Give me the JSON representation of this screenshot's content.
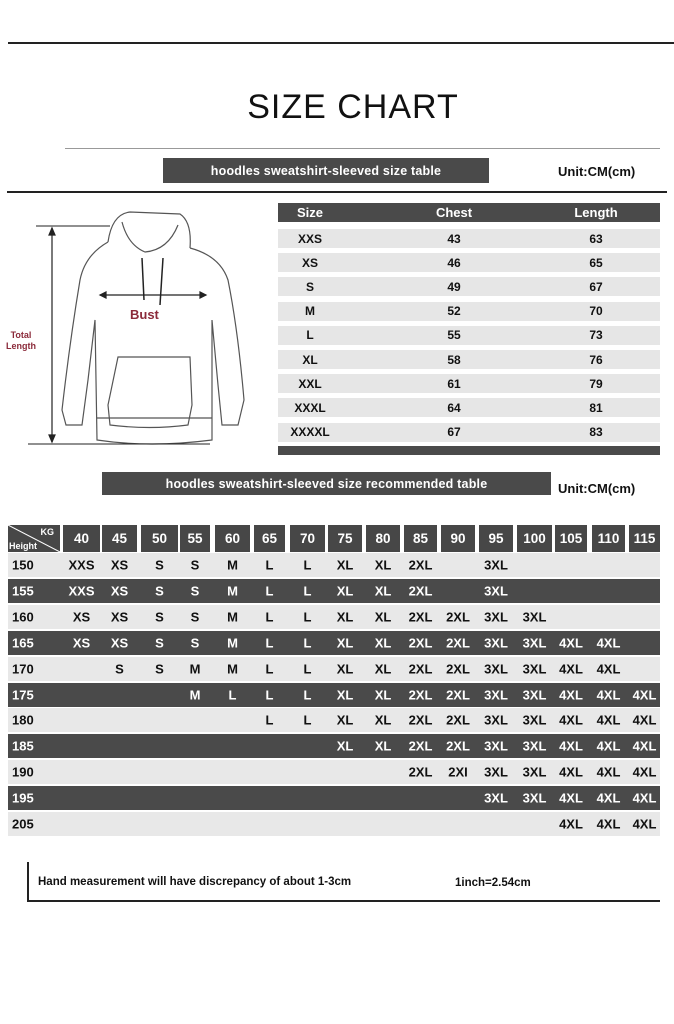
{
  "title": "SIZE CHART",
  "size_table": {
    "banner": "hoodles sweatshirt-sleeved size  table",
    "unit": "Unit:CM(cm)",
    "headers": [
      "Size",
      "Chest",
      "Length"
    ],
    "rows": [
      [
        "XXS",
        "43",
        "63"
      ],
      [
        "XS",
        "46",
        "65"
      ],
      [
        "S",
        "49",
        "67"
      ],
      [
        "M",
        "52",
        "70"
      ],
      [
        "L",
        "55",
        "73"
      ],
      [
        "XL",
        "58",
        "76"
      ],
      [
        "XXL",
        "61",
        "79"
      ],
      [
        "XXXL",
        "64",
        "81"
      ],
      [
        "XXXXL",
        "67",
        "83"
      ]
    ]
  },
  "diagram": {
    "bust_label": "Bust",
    "total_length_label": "Total\nLength",
    "bust_color": "#8b2a3a"
  },
  "recommend_table": {
    "banner": "hoodles sweatshirt-sleeved size recommended table",
    "unit": "Unit:CM(cm)",
    "corner_kg": "KG",
    "corner_height": "Height",
    "weights": [
      "40",
      "45",
      "50",
      "55",
      "60",
      "65",
      "70",
      "75",
      "80",
      "85",
      "90",
      "95",
      "100",
      "105",
      "110",
      "115"
    ],
    "rows": [
      {
        "height": "150",
        "sizes": [
          "XXS",
          "XS",
          "S",
          "S",
          "M",
          "L",
          "L",
          "XL",
          "XL",
          "2XL",
          "",
          "3XL",
          "",
          "",
          "",
          ""
        ]
      },
      {
        "height": "155",
        "sizes": [
          "XXS",
          "XS",
          "S",
          "S",
          "M",
          "L",
          "L",
          "XL",
          "XL",
          "2XL",
          "",
          "3XL",
          "",
          "",
          "",
          ""
        ]
      },
      {
        "height": "160",
        "sizes": [
          "XS",
          "XS",
          "S",
          "S",
          "M",
          "L",
          "L",
          "XL",
          "XL",
          "2XL",
          "2XL",
          "3XL",
          "3XL",
          "",
          "",
          ""
        ]
      },
      {
        "height": "165",
        "sizes": [
          "XS",
          "XS",
          "S",
          "S",
          "M",
          "L",
          "L",
          "XL",
          "XL",
          "2XL",
          "2XL",
          "3XL",
          "3XL",
          "4XL",
          "4XL",
          ""
        ]
      },
      {
        "height": "170",
        "sizes": [
          "",
          "S",
          "S",
          "M",
          "M",
          "L",
          "L",
          "XL",
          "XL",
          "2XL",
          "2XL",
          "3XL",
          "3XL",
          "4XL",
          "4XL",
          ""
        ]
      },
      {
        "height": "175",
        "sizes": [
          "",
          "",
          "",
          "M",
          "L",
          "L",
          "L",
          "XL",
          "XL",
          "2XL",
          "2XL",
          "3XL",
          "3XL",
          "4XL",
          "4XL",
          "4XL"
        ]
      },
      {
        "height": "180",
        "sizes": [
          "",
          "",
          "",
          "",
          "",
          "L",
          "L",
          "XL",
          "XL",
          "2XL",
          "2XL",
          "3XL",
          "3XL",
          "4XL",
          "4XL",
          "4XL"
        ]
      },
      {
        "height": "185",
        "sizes": [
          "",
          "",
          "",
          "",
          "",
          "",
          "",
          "XL",
          "XL",
          "2XL",
          "2XL",
          "3XL",
          "3XL",
          "4XL",
          "4XL",
          "4XL"
        ]
      },
      {
        "height": "190",
        "sizes": [
          "",
          "",
          "",
          "",
          "",
          "",
          "",
          "",
          "",
          "2XL",
          "2XI",
          "3XL",
          "3XL",
          "4XL",
          "4XL",
          "4XL"
        ]
      },
      {
        "height": "195",
        "sizes": [
          "",
          "",
          "",
          "",
          "",
          "",
          "",
          "",
          "",
          "",
          "",
          "3XL",
          "3XL",
          "4XL",
          "4XL",
          "4XL"
        ]
      },
      {
        "height": "205",
        "sizes": [
          "",
          "",
          "",
          "",
          "",
          "",
          "",
          "",
          "",
          "",
          "",
          "",
          "",
          "4XL",
          "4XL",
          "4XL"
        ]
      }
    ]
  },
  "footer": {
    "note": "Hand measurement will have discrepancy of about  1-3cm",
    "conversion": "1inch=2.54cm"
  }
}
